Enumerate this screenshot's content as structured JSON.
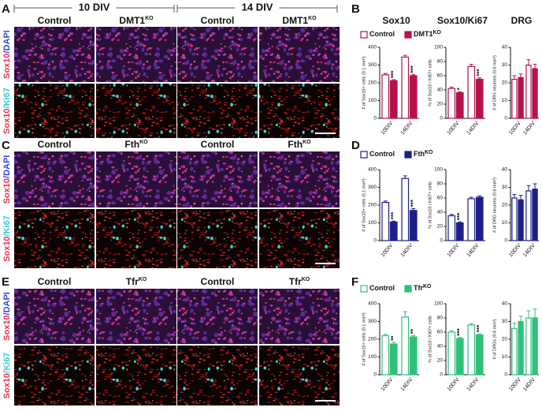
{
  "figure": {
    "micrographs": [
      {
        "letter": "A",
        "groups": [
          "10 DIV",
          "14 DIV"
        ],
        "columns": [
          {
            "label": "Control"
          },
          {
            "label": "DMT1",
            "sup": "KO"
          },
          {
            "label": "Control"
          },
          {
            "label": "DMT1",
            "sup": "KO"
          }
        ],
        "rows": [
          {
            "parts": [
              "Sox10",
              "/DAPI"
            ],
            "colors": [
              "#e8324a",
              "#3b46e0"
            ]
          },
          {
            "parts": [
              "Sox10",
              "/Ki67"
            ],
            "colors": [
              "#e8324a",
              "#2ccfd0"
            ]
          }
        ]
      },
      {
        "letter": "C",
        "columns": [
          {
            "label": "Control"
          },
          {
            "label": "Fth",
            "sup": "KO"
          },
          {
            "label": "Control"
          },
          {
            "label": "Fth",
            "sup": "KO"
          }
        ],
        "rows": [
          {
            "parts": [
              "Sox10",
              "/DAPI"
            ],
            "colors": [
              "#e8324a",
              "#3b46e0"
            ]
          },
          {
            "parts": [
              "Sox10",
              "/Ki67"
            ],
            "colors": [
              "#e8324a",
              "#2ccfd0"
            ]
          }
        ]
      },
      {
        "letter": "E",
        "columns": [
          {
            "label": "Control"
          },
          {
            "label": "Tfr",
            "sup": "KO"
          },
          {
            "label": "Control"
          },
          {
            "label": "Tfr",
            "sup": "KO"
          }
        ],
        "rows": [
          {
            "parts": [
              "Sox10",
              "/DAPI"
            ],
            "colors": [
              "#e8324a",
              "#3b46e0"
            ]
          },
          {
            "parts": [
              "Sox10",
              "/Ki67"
            ],
            "colors": [
              "#e8324a",
              "#2ccfd0"
            ]
          }
        ]
      }
    ],
    "chart_panels": [
      {
        "letter": "B",
        "headers": [
          "Sox10",
          "Sox10/Ki67",
          "DRG"
        ]
      },
      {
        "letter": "D"
      },
      {
        "letter": "F"
      }
    ]
  },
  "chart_data": [
    {
      "type": "bar",
      "ylabel": "# of Sox10+ cells (0.1 mm²)",
      "categories": [
        "10DIV",
        "14DIV"
      ],
      "ylim": [
        0,
        400
      ],
      "yticks": [
        0,
        100,
        200,
        300,
        400
      ],
      "series": [
        {
          "name": "Control",
          "color": "#b5124a",
          "fill": "#ffffff",
          "values": [
            245,
            345
          ],
          "errors": [
            8,
            10
          ]
        },
        {
          "name": "DMT1",
          "name_sup": "KO",
          "color": "#b5124a",
          "values": [
            212,
            240
          ],
          "errors": [
            6,
            6
          ],
          "annotations": [
            "***",
            "***"
          ]
        }
      ]
    },
    {
      "type": "bar",
      "ylabel": "% of Sox10 / Ki67+ cells",
      "categories": [
        "10DIV",
        "14DIV"
      ],
      "ylim": [
        0,
        100
      ],
      "yticks": [
        0,
        20,
        40,
        60,
        80,
        100
      ],
      "series": [
        {
          "name": "Control",
          "color": "#b5124a",
          "fill": "#ffffff",
          "values": [
            42,
            73
          ],
          "errors": [
            2,
            3
          ]
        },
        {
          "name": "DMT1",
          "name_sup": "KO",
          "color": "#b5124a",
          "values": [
            36,
            55
          ],
          "errors": [
            1.5,
            2
          ]
        }
      ],
      "annotations_series": 1,
      "annotations": [
        "*",
        "***"
      ]
    },
    {
      "type": "bar",
      "ylabel": "# of DRG neurons (0.6 mm²)",
      "categories": [
        "10DIV",
        "14DIV"
      ],
      "ylim": [
        0,
        40
      ],
      "yticks": [
        0,
        10,
        20,
        30,
        40
      ],
      "series": [
        {
          "name": "Control",
          "color": "#b5124a",
          "fill": "#ffffff",
          "values": [
            22,
            30
          ],
          "errors": [
            2,
            3
          ]
        },
        {
          "name": "DMT1",
          "name_sup": "KO",
          "color": "#b5124a",
          "values": [
            23,
            28
          ],
          "errors": [
            2,
            2.5
          ]
        }
      ]
    },
    {
      "type": "bar",
      "ylabel": "# of Sox10+ cells (0.1 mm²)",
      "categories": [
        "10DIV",
        "14DIV"
      ],
      "ylim": [
        0,
        400
      ],
      "yticks": [
        0,
        100,
        200,
        300,
        400
      ],
      "series": [
        {
          "name": "Control",
          "color": "#1c1f8a",
          "fill": "#ffffff",
          "values": [
            215,
            350
          ],
          "errors": [
            8,
            15
          ]
        },
        {
          "name": "Fth",
          "name_sup": "KO",
          "color": "#1c1f8a",
          "values": [
            105,
            170
          ],
          "errors": [
            5,
            10
          ]
        }
      ],
      "annotations_series": 1,
      "annotations": [
        "***",
        "***"
      ]
    },
    {
      "type": "bar",
      "ylabel": "% of Sox10 / Ki67+ cells",
      "categories": [
        "10DIV",
        "14DIV"
      ],
      "ylim": [
        0,
        100
      ],
      "yticks": [
        0,
        20,
        40,
        60,
        80,
        100
      ],
      "series": [
        {
          "name": "Control",
          "color": "#1c1f8a",
          "fill": "#ffffff",
          "values": [
            35,
            59
          ],
          "errors": [
            2,
            2
          ]
        },
        {
          "name": "Fth",
          "name_sup": "KO",
          "color": "#1c1f8a",
          "values": [
            25,
            61
          ],
          "errors": [
            1.5,
            2
          ]
        }
      ],
      "annotations_series": 1,
      "annotations": [
        "***",
        null
      ]
    },
    {
      "type": "bar",
      "ylabel": "# of DRG neurons (0.6 mm²)",
      "categories": [
        "10DIV",
        "14DIV"
      ],
      "ylim": [
        0,
        40
      ],
      "yticks": [
        0,
        10,
        20,
        30,
        40
      ],
      "series": [
        {
          "name": "Control",
          "color": "#1c1f8a",
          "fill": "#ffffff",
          "values": [
            24,
            28
          ],
          "errors": [
            2,
            3
          ]
        },
        {
          "name": "Fth",
          "name_sup": "KO",
          "color": "#1c1f8a",
          "values": [
            23,
            29
          ],
          "errors": [
            2.5,
            3
          ]
        }
      ]
    },
    {
      "type": "bar",
      "ylabel": "# of Sox10+ cells (0.1 mm²)",
      "categories": [
        "10DIV",
        "14DIV"
      ],
      "ylim": [
        0,
        400
      ],
      "yticks": [
        0,
        100,
        200,
        300,
        400
      ],
      "series": [
        {
          "name": "Control",
          "color": "#2fc07a",
          "fill": "#ffffff",
          "values": [
            220,
            325
          ],
          "errors": [
            8,
            30
          ]
        },
        {
          "name": "Tfr",
          "name_sup": "KO",
          "color": "#2fc07a",
          "values": [
            173,
            213
          ],
          "errors": [
            10,
            8
          ]
        }
      ],
      "annotations_series": 1,
      "annotations": [
        "**",
        "**"
      ]
    },
    {
      "type": "bar",
      "ylabel": "% of Sox10 / Ki67+ cells",
      "categories": [
        "10DIV",
        "14DIV"
      ],
      "ylim": [
        0,
        100
      ],
      "yticks": [
        0,
        20,
        40,
        60,
        80,
        100
      ],
      "series": [
        {
          "name": "Control",
          "color": "#2fc07a",
          "fill": "#ffffff",
          "values": [
            60,
            70
          ],
          "errors": [
            2,
            2
          ]
        },
        {
          "name": "Tfr",
          "name_sup": "KO",
          "color": "#2fc07a",
          "values": [
            51,
            56
          ],
          "errors": [
            1.5,
            1.5
          ]
        }
      ],
      "annotations_series": 1,
      "annotations": [
        "***",
        "***"
      ]
    },
    {
      "type": "bar",
      "ylabel": "# of DRGs (0.6 mm²)",
      "categories": [
        "10DIV",
        "14DIV"
      ],
      "ylim": [
        0,
        40
      ],
      "yticks": [
        0,
        10,
        20,
        30,
        40
      ],
      "series": [
        {
          "name": "Control",
          "color": "#2fc07a",
          "fill": "#ffffff",
          "values": [
            26,
            32
          ],
          "errors": [
            3,
            4
          ]
        },
        {
          "name": "Tfr",
          "name_sup": "KO",
          "color": "#2fc07a",
          "values": [
            30,
            32
          ],
          "errors": [
            3,
            5
          ]
        }
      ]
    }
  ]
}
